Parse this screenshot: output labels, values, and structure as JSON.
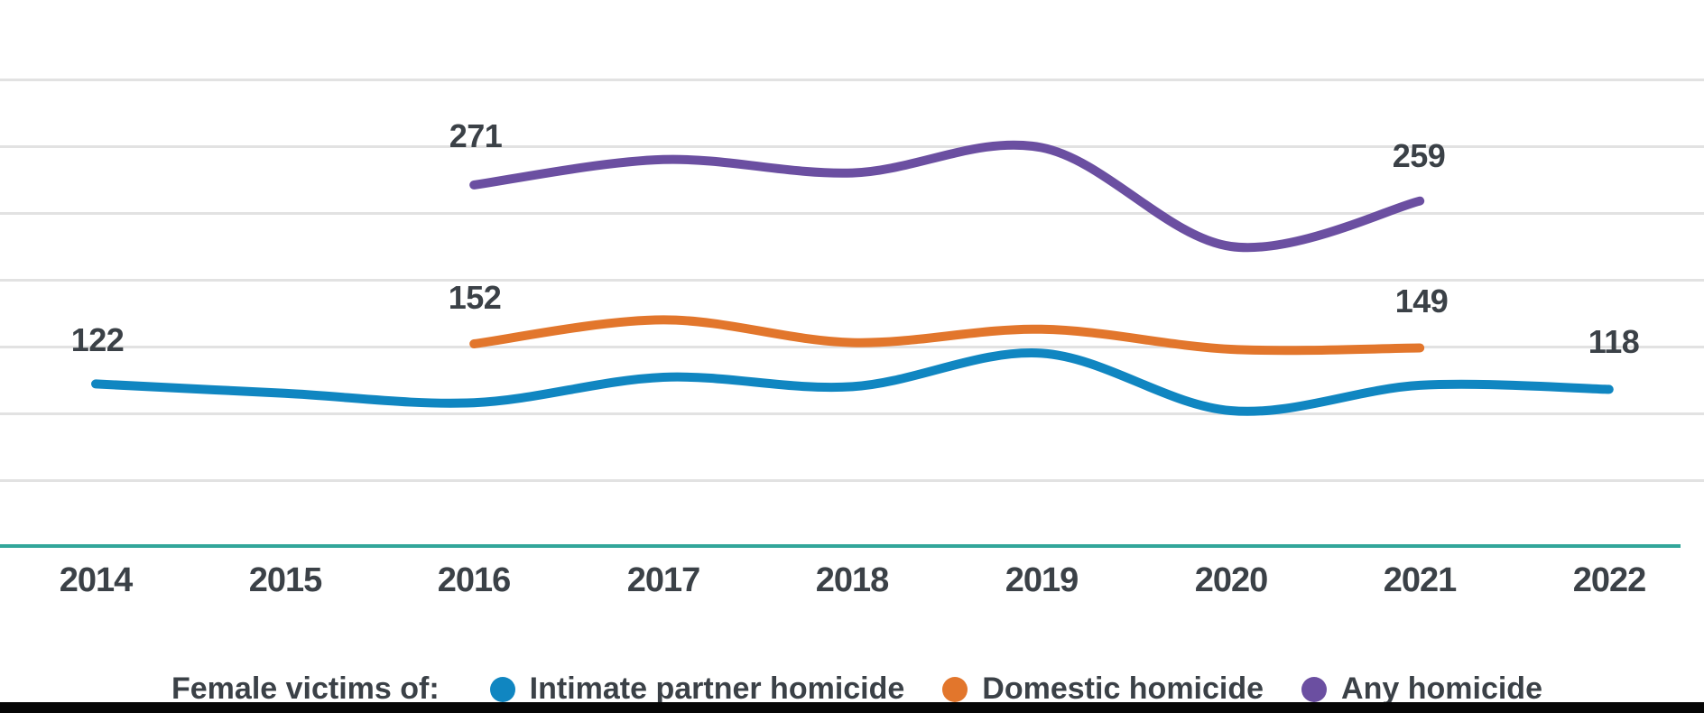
{
  "chart_data": {
    "type": "line",
    "x": [
      "2014",
      "2015",
      "2016",
      "2017",
      "2018",
      "2019",
      "2020",
      "2021",
      "2022"
    ],
    "series": [
      {
        "name": "Intimate partner homicide",
        "color": "#1086c1",
        "start_year": "2014",
        "values": [
          122,
          115,
          108,
          127,
          120,
          145,
          102,
          121,
          118
        ]
      },
      {
        "name": "Domestic homicide",
        "color": "#e2762c",
        "start_year": "2016",
        "values": [
          152,
          170,
          153,
          163,
          148,
          149
        ]
      },
      {
        "name": "Any homicide",
        "color": "#6b4fa1",
        "start_year": "2016",
        "values": [
          271,
          290,
          280,
          299,
          225,
          259
        ]
      }
    ],
    "ylim": [
      0,
      350
    ],
    "grid_interval": 50,
    "grid": "horizontal-only",
    "curve": "smooth",
    "axis_line_color": "#32a69a",
    "gridline_color": "#e2e2e2",
    "text_color": "#3b4147",
    "legend_position": "bottom"
  },
  "legend": {
    "title": "Female victims of:"
  },
  "annotations": {
    "labels": [
      {
        "text": "122",
        "series": "Intimate partner homicide",
        "year": "2014"
      },
      {
        "text": "271",
        "series": "Any homicide",
        "year": "2016"
      },
      {
        "text": "152",
        "series": "Domestic homicide",
        "year": "2016"
      },
      {
        "text": "259",
        "series": "Any homicide",
        "year": "2021"
      },
      {
        "text": "149",
        "series": "Domestic homicide",
        "year": "2021"
      },
      {
        "text": "118",
        "series": "Intimate partner homicide",
        "year": "2022"
      }
    ]
  }
}
